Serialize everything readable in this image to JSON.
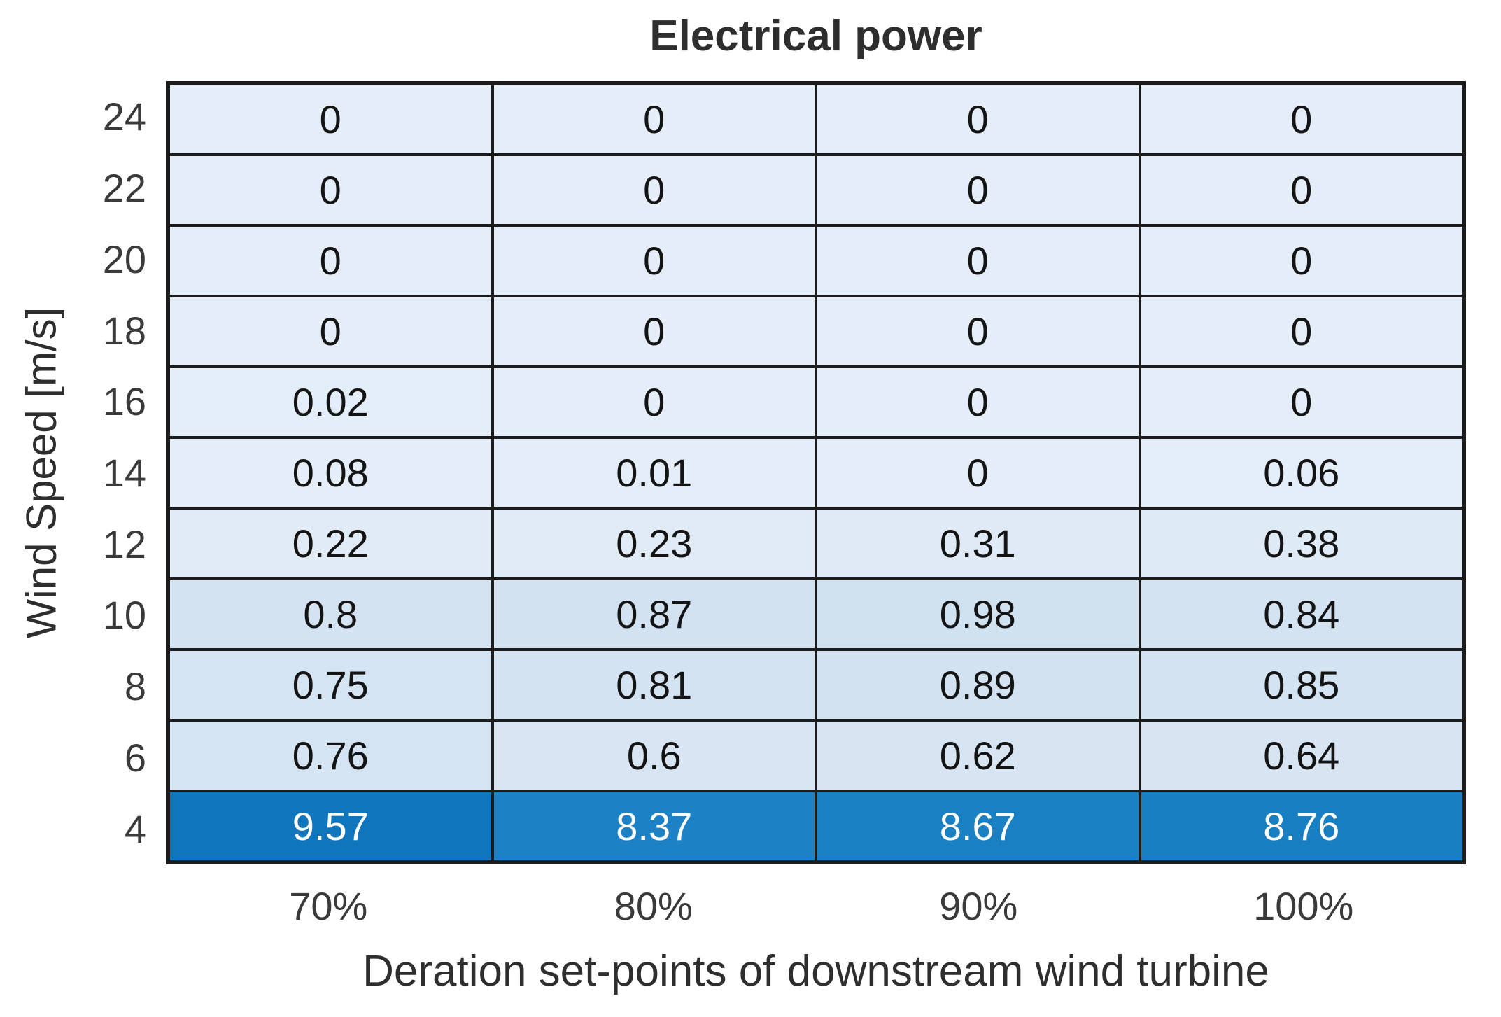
{
  "figure": {
    "title": "Electrical power",
    "xlabel": "Deration set-points of downstream wind turbine",
    "ylabel": "Wind Speed [m/s]"
  },
  "chart_data": {
    "type": "heatmap",
    "title": "Electrical power",
    "xlabel": "Deration set-points of downstream wind turbine",
    "ylabel": "Wind Speed [m/s]",
    "columns": [
      "70%",
      "80%",
      "90%",
      "100%"
    ],
    "rows": [
      "24",
      "22",
      "20",
      "18",
      "16",
      "14",
      "12",
      "10",
      "8",
      "6",
      "4"
    ],
    "values": [
      [
        0,
        0,
        0,
        0
      ],
      [
        0,
        0,
        0,
        0
      ],
      [
        0,
        0,
        0,
        0
      ],
      [
        0,
        0,
        0,
        0
      ],
      [
        0.02,
        0,
        0,
        0
      ],
      [
        0.08,
        0.01,
        0,
        0.06
      ],
      [
        0.22,
        0.23,
        0.31,
        0.38
      ],
      [
        0.8,
        0.87,
        0.98,
        0.84
      ],
      [
        0.75,
        0.81,
        0.89,
        0.85
      ],
      [
        0.76,
        0.6,
        0.62,
        0.64
      ],
      [
        9.57,
        8.37,
        8.67,
        8.76
      ]
    ],
    "labels": [
      [
        "0",
        "0",
        "0",
        "0"
      ],
      [
        "0",
        "0",
        "0",
        "0"
      ],
      [
        "0",
        "0",
        "0",
        "0"
      ],
      [
        "0",
        "0",
        "0",
        "0"
      ],
      [
        "0.02",
        "0",
        "0",
        "0"
      ],
      [
        "0.08",
        "0.01",
        "0",
        "0.06"
      ],
      [
        "0.22",
        "0.23",
        "0.31",
        "0.38"
      ],
      [
        "0.8",
        "0.87",
        "0.98",
        "0.84"
      ],
      [
        "0.75",
        "0.81",
        "0.89",
        "0.85"
      ],
      [
        "0.76",
        "0.6",
        "0.62",
        "0.64"
      ],
      [
        "9.57",
        "8.37",
        "8.67",
        "8.76"
      ]
    ],
    "cell_colors": [
      [
        "#e5eef8",
        "#e5eef8",
        "#e5eef8",
        "#e5eef8"
      ],
      [
        "#e5eef8",
        "#e5eef8",
        "#e5eef8",
        "#e5eef8"
      ],
      [
        "#e5eef8",
        "#e5eef8",
        "#e5eef8",
        "#e5eef8"
      ],
      [
        "#e5eef8",
        "#e5eef8",
        "#e5eef8",
        "#e5eef8"
      ],
      [
        "#e4eef8",
        "#e5eef8",
        "#e5eef8",
        "#e5eef8"
      ],
      [
        "#e4edf8",
        "#e5eef8",
        "#e5eef8",
        "#e4eef8"
      ],
      [
        "#e1ebf6",
        "#e1ebf6",
        "#dfeaf6",
        "#deeaf5"
      ],
      [
        "#d4e3f2",
        "#d2e2f1",
        "#d0e1f0",
        "#d3e3f1"
      ],
      [
        "#d5e4f2",
        "#d4e3f2",
        "#d2e2f1",
        "#d3e3f1"
      ],
      [
        "#d5e4f2",
        "#d8e6f3",
        "#d7e5f3",
        "#d7e5f3"
      ],
      [
        "#0f75bd",
        "#1c82c5",
        "#1880c3",
        "#177fc2"
      ]
    ],
    "cell_text_dark": "#141414",
    "cell_text_light": "#ffffff",
    "light_text_threshold": 5,
    "value_range": [
      0,
      9.57
    ],
    "grid_color": "#1c1c1c",
    "legend": "none",
    "colormap": {
      "low": "#e5eef8",
      "high": "#0f75bd"
    }
  }
}
